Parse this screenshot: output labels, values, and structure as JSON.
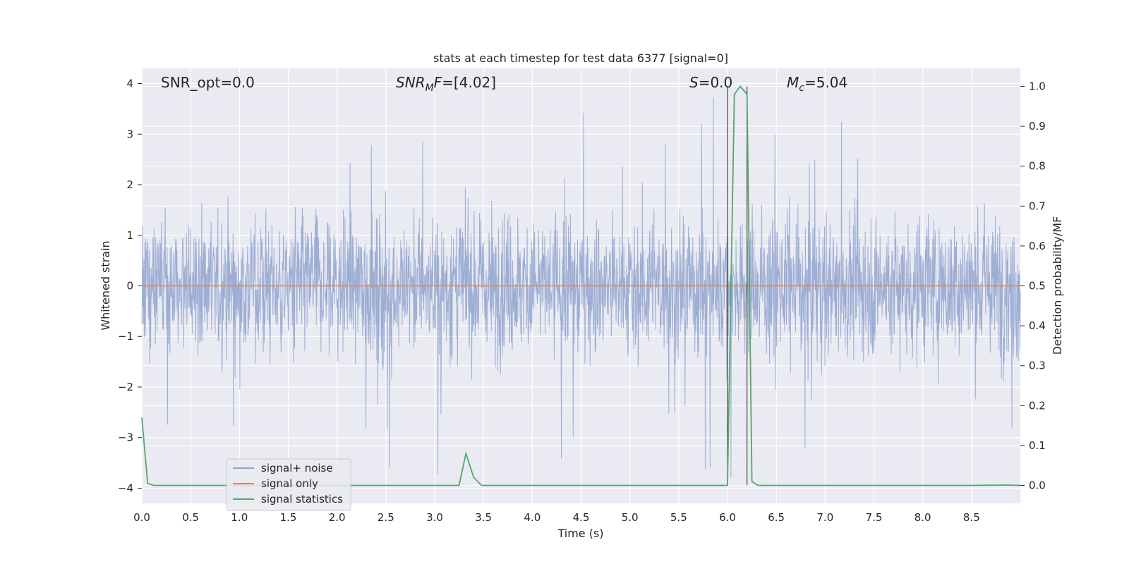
{
  "chart_data": {
    "type": "line",
    "title": "stats at each timestep for test data 6377 [signal=0]",
    "xlabel": "Time (s)",
    "ylabel_left": "Whitened strain",
    "ylabel_right": "Detection probability/MF",
    "xlim": [
      0.0,
      9.0
    ],
    "ylim_left": [
      -4.3,
      4.3
    ],
    "ylim_right": [
      -0.045,
      1.045
    ],
    "x_ticks": [
      "0.0",
      "0.5",
      "1.0",
      "1.5",
      "2.0",
      "2.5",
      "3.0",
      "3.5",
      "4.0",
      "4.5",
      "5.0",
      "5.5",
      "6.0",
      "6.5",
      "7.0",
      "7.5",
      "8.0",
      "8.5"
    ],
    "y_ticks_left": [
      "4",
      "3",
      "2",
      "1",
      "0",
      "−1",
      "−2",
      "−3",
      "−4"
    ],
    "y_ticks_right": [
      "1.0",
      "0.9",
      "0.8",
      "0.7",
      "0.6",
      "0.5",
      "0.4",
      "0.3",
      "0.2",
      "0.1",
      "0.0"
    ],
    "grid": true,
    "legend_position": "lower-left",
    "annotations": {
      "snr_opt": "SNR_opt=0.0",
      "snr_mf_main": "SNR",
      "snr_mf_sub": "M",
      "snr_mf_rest": "F=[4.02]",
      "s_main": "S",
      "s_rest": "=0.0",
      "mc_main": "M",
      "mc_sub": "c",
      "mc_rest": "=5.04"
    },
    "vertical_markers_x": [
      6.0,
      6.2
    ],
    "series": [
      {
        "name": "signal+ noise",
        "color": "#8fa3cf",
        "axis": "left",
        "description_values": {
          "envelope_typical_max": 2.2,
          "envelope_typical_min": -2.2,
          "peak_max": 3.9,
          "peak_min": -4.0
        }
      },
      {
        "name": "signal only",
        "color": "#dd8452",
        "axis": "left",
        "x": [
          0.0,
          9.0
        ],
        "y": [
          0.0,
          0.0
        ]
      },
      {
        "name": "signal statistics",
        "color": "#55a868",
        "axis": "right",
        "x": [
          0.0,
          0.06,
          0.12,
          0.5,
          1.0,
          2.0,
          3.0,
          3.25,
          3.32,
          3.4,
          3.48,
          4.0,
          5.0,
          5.9,
          6.0,
          6.07,
          6.13,
          6.2,
          6.25,
          6.31,
          7.0,
          8.0,
          8.5,
          8.85,
          9.0
        ],
        "y": [
          0.17,
          0.005,
          0.0,
          0.0,
          0.0,
          0.0,
          0.0,
          0.0,
          0.08,
          0.02,
          0.0,
          0.0,
          0.0,
          0.0,
          0.0,
          0.98,
          1.0,
          0.98,
          0.01,
          0.0,
          0.0,
          0.0,
          0.0,
          0.001,
          0.0
        ]
      }
    ]
  }
}
